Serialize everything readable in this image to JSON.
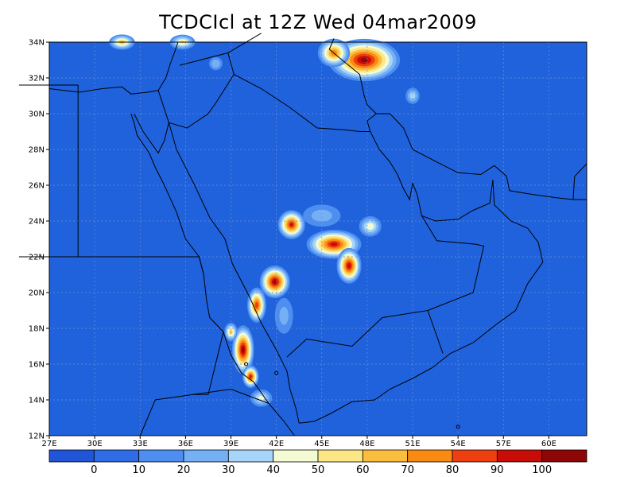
{
  "title": "TCDCIcl at 12Z Wed 04mar2009",
  "colors": {
    "background_field": "#1f62dc",
    "coast": "#000000",
    "grid": "#6f8fd0"
  },
  "chart_data": {
    "type": "heatmap",
    "projection": "lat-lon",
    "xlim": [
      27,
      62.5
    ],
    "ylim": [
      12,
      34
    ],
    "x_ticks": [
      "27E",
      "30E",
      "33E",
      "36E",
      "39E",
      "42E",
      "45E",
      "48E",
      "51E",
      "54E",
      "57E",
      "60E"
    ],
    "x_tick_values": [
      27,
      30,
      33,
      36,
      39,
      42,
      45,
      48,
      51,
      54,
      57,
      60
    ],
    "y_ticks": [
      "12N",
      "14N",
      "16N",
      "18N",
      "20N",
      "22N",
      "24N",
      "26N",
      "28N",
      "30N",
      "32N",
      "34N"
    ],
    "y_tick_values": [
      12,
      14,
      16,
      18,
      20,
      22,
      24,
      26,
      28,
      30,
      32,
      34
    ],
    "grid": true,
    "colorbar": {
      "levels": [
        "0",
        "10",
        "20",
        "30",
        "40",
        "50",
        "60",
        "70",
        "80",
        "90",
        "100"
      ],
      "colors": [
        "#1f55d6",
        "#2f6ce6",
        "#4e8ef0",
        "#75b0f5",
        "#a7d5fa",
        "#f4fbd2",
        "#fbe785",
        "#fbbd3e",
        "#fa8a12",
        "#ef3f10",
        "#c80d08",
        "#8f0606"
      ]
    },
    "features": [
      {
        "lon": 47.8,
        "lat": 33.0,
        "peak": 100,
        "rx": 2.6,
        "ry": 1.3
      },
      {
        "lon": 45.8,
        "lat": 33.4,
        "peak": 75,
        "rx": 1.2,
        "ry": 0.9
      },
      {
        "lon": 31.8,
        "lat": 34.0,
        "peak": 60,
        "rx": 1.0,
        "ry": 0.5
      },
      {
        "lon": 35.8,
        "lat": 34.0,
        "peak": 50,
        "rx": 1.0,
        "ry": 0.5
      },
      {
        "lon": 38.0,
        "lat": 32.8,
        "peak": 28,
        "rx": 0.6,
        "ry": 0.5
      },
      {
        "lon": 51.0,
        "lat": 31.0,
        "peak": 32,
        "rx": 0.6,
        "ry": 0.6
      },
      {
        "lon": 43.0,
        "lat": 23.8,
        "peak": 90,
        "rx": 1.0,
        "ry": 0.9
      },
      {
        "lon": 45.8,
        "lat": 22.7,
        "peak": 92,
        "rx": 2.0,
        "ry": 0.9
      },
      {
        "lon": 46.8,
        "lat": 21.5,
        "peak": 95,
        "rx": 0.9,
        "ry": 1.1
      },
      {
        "lon": 48.2,
        "lat": 23.7,
        "peak": 45,
        "rx": 0.9,
        "ry": 0.7
      },
      {
        "lon": 41.9,
        "lat": 20.6,
        "peak": 100,
        "rx": 1.1,
        "ry": 1.0
      },
      {
        "lon": 40.7,
        "lat": 19.3,
        "peak": 85,
        "rx": 0.7,
        "ry": 1.1
      },
      {
        "lon": 39.8,
        "lat": 16.8,
        "peak": 100,
        "rx": 0.8,
        "ry": 1.5
      },
      {
        "lon": 40.3,
        "lat": 15.3,
        "peak": 90,
        "rx": 0.6,
        "ry": 0.7
      },
      {
        "lon": 39.0,
        "lat": 17.8,
        "peak": 60,
        "rx": 0.5,
        "ry": 0.6
      },
      {
        "lon": 41.0,
        "lat": 14.1,
        "peak": 40,
        "rx": 0.9,
        "ry": 0.6
      },
      {
        "lon": 42.5,
        "lat": 18.7,
        "peak": 20,
        "rx": 0.9,
        "ry": 1.5
      },
      {
        "lon": 45.0,
        "lat": 24.3,
        "peak": 22,
        "rx": 1.8,
        "ry": 0.9
      }
    ]
  }
}
